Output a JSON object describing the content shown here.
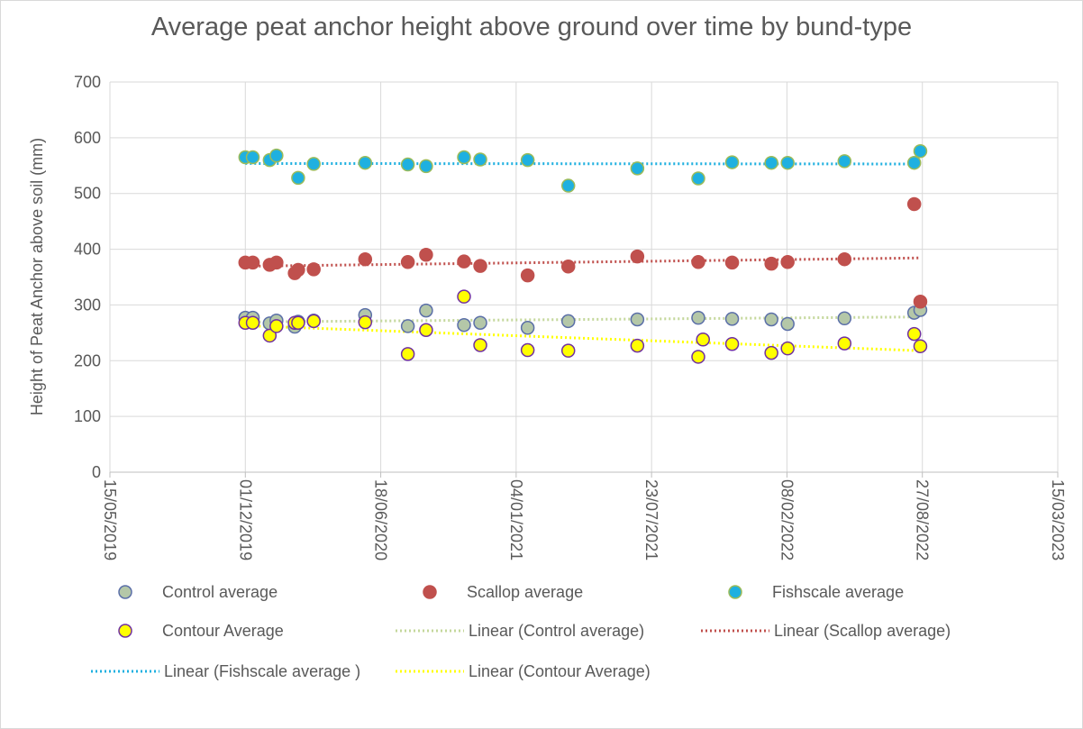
{
  "chart_data": {
    "type": "scatter",
    "title": "Average peat anchor height above ground over time by bund-type",
    "y_label": "Height of Peat Anchor above soil (mm)",
    "xlim": [
      "15/05/2019",
      "15/03/2023"
    ],
    "xticks": [
      "15/05/2019",
      "01/12/2019",
      "18/06/2020",
      "04/01/2021",
      "23/07/2021",
      "08/02/2022",
      "27/08/2022",
      "15/03/2023"
    ],
    "ylim": [
      0,
      700
    ],
    "yticks": [
      0,
      100,
      200,
      300,
      400,
      500,
      600,
      700
    ],
    "grid": true,
    "legend": "bottom",
    "series": [
      {
        "name": "Control average",
        "color": "#b4c7a8",
        "edge": "#5b6fa8",
        "x": [
          "01/12/2019",
          "12/12/2019",
          "06/01/2020",
          "16/01/2020",
          "12/02/2020",
          "17/02/2020",
          "11/03/2020",
          "26/05/2020",
          "28/07/2020",
          "24/08/2020",
          "19/10/2020",
          "12/11/2020",
          "21/01/2021",
          "22/03/2021",
          "02/07/2021",
          "30/09/2021",
          "19/11/2021",
          "16/01/2022",
          "09/02/2022",
          "04/05/2022",
          "15/08/2022",
          "24/08/2022"
        ],
        "values": [
          277,
          277,
          267,
          272,
          261,
          270,
          272,
          282,
          262,
          290,
          264,
          268,
          259,
          271,
          274,
          277,
          275,
          274,
          266,
          276,
          286,
          291
        ],
        "trendline": {
          "name": "Linear (Control average)",
          "color": "#c4d79b"
        }
      },
      {
        "name": "Scallop average",
        "color": "#c0504d",
        "edge": "#c0504d",
        "x": [
          "01/12/2019",
          "12/12/2019",
          "06/01/2020",
          "16/01/2020",
          "12/02/2020",
          "17/02/2020",
          "11/03/2020",
          "26/05/2020",
          "28/07/2020",
          "24/08/2020",
          "19/10/2020",
          "12/11/2020",
          "21/01/2021",
          "22/03/2021",
          "02/07/2021",
          "30/09/2021",
          "19/11/2021",
          "16/01/2022",
          "09/02/2022",
          "04/05/2022",
          "15/08/2022",
          "24/08/2022"
        ],
        "values": [
          376,
          376,
          372,
          376,
          357,
          363,
          364,
          382,
          377,
          390,
          378,
          370,
          353,
          369,
          387,
          377,
          376,
          374,
          377,
          382,
          481,
          306
        ],
        "trendline": {
          "name": "Linear (Scallop average)",
          "color": "#c0504d"
        }
      },
      {
        "name": "Fishscale average",
        "color": "#1fb0e0",
        "edge": "#9bbb59",
        "x": [
          "01/12/2019",
          "12/12/2019",
          "06/01/2020",
          "16/01/2020",
          "17/02/2020",
          "11/03/2020",
          "26/05/2020",
          "28/07/2020",
          "24/08/2020",
          "19/10/2020",
          "12/11/2020",
          "21/01/2021",
          "22/03/2021",
          "02/07/2021",
          "30/09/2021",
          "19/11/2021",
          "16/01/2022",
          "09/02/2022",
          "04/05/2022",
          "15/08/2022",
          "24/08/2022"
        ],
        "values": [
          565,
          565,
          560,
          568,
          528,
          553,
          555,
          552,
          549,
          565,
          561,
          560,
          514,
          545,
          527,
          556,
          555,
          555,
          558,
          555,
          576
        ],
        "trendline": {
          "name": "Linear (Fishscale average )",
          "color": "#1fb0e0"
        }
      },
      {
        "name": "Contour Average",
        "color": "#ffff00",
        "edge": "#7030a0",
        "x": [
          "01/12/2019",
          "12/12/2019",
          "06/01/2020",
          "16/01/2020",
          "12/02/2020",
          "17/02/2020",
          "11/03/2020",
          "26/05/2020",
          "28/07/2020",
          "24/08/2020",
          "19/10/2020",
          "12/11/2020",
          "21/01/2021",
          "22/03/2021",
          "02/07/2021",
          "30/09/2021",
          "07/10/2021",
          "19/11/2021",
          "16/01/2022",
          "09/02/2022",
          "04/05/2022",
          "15/08/2022",
          "24/08/2022"
        ],
        "values": [
          268,
          268,
          245,
          262,
          268,
          268,
          271,
          269,
          212,
          255,
          315,
          228,
          219,
          218,
          227,
          207,
          238,
          230,
          214,
          222,
          231,
          248,
          226
        ],
        "trendline": {
          "name": "Linear (Contour Average)",
          "color": "#ffff00"
        }
      }
    ]
  }
}
